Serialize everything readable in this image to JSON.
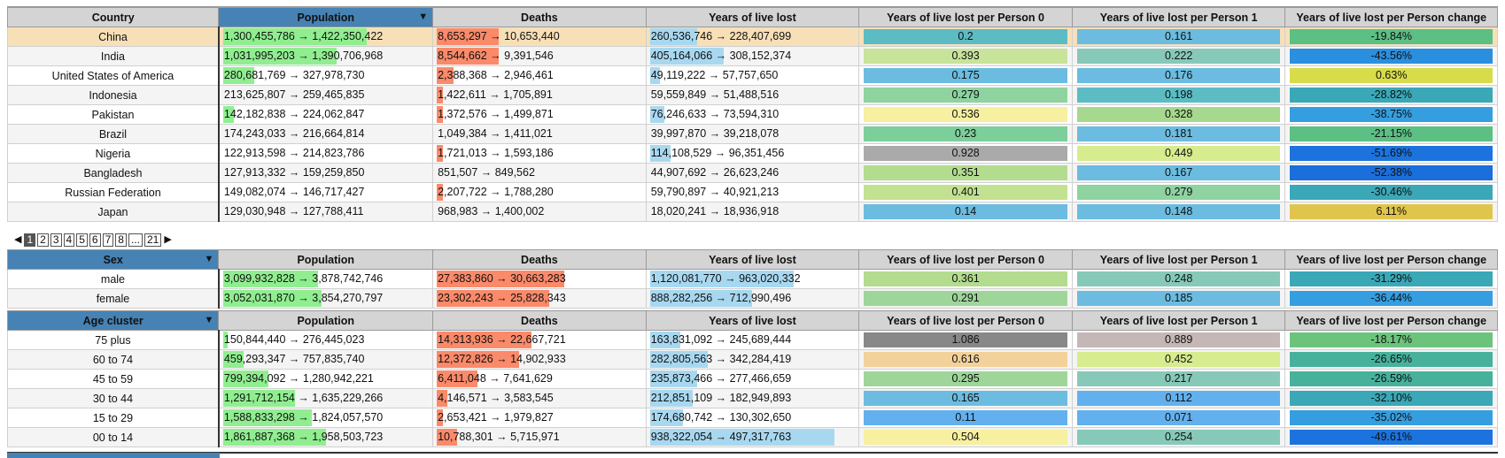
{
  "country_table": {
    "headers": [
      "Country",
      "Population",
      "Deaths",
      "Years of live lost",
      "Years of live lost per Person 0",
      "Years of live lost per Person 1",
      "Years of live lost per Person change"
    ],
    "rows": [
      {
        "name": "China",
        "pop": "1,300,455,786 → 1,422,350,422",
        "pop_frac": 0.7,
        "deaths": "8,653,297 → 10,653,440",
        "deaths_frac": 0.3,
        "yll": "260,536,746 → 228,407,699",
        "yll_frac": 0.23,
        "p0": "0.2",
        "p0_color": "#5bbcc4",
        "p1": "0.161",
        "p1_color": "#6bbce0",
        "chg": "-19.84%",
        "chg_color": "#5cbf84",
        "highlight": true
      },
      {
        "name": "India",
        "pop": "1,031,995,203 → 1,390,706,968",
        "pop_frac": 0.55,
        "deaths": "8,544,662 → 9,391,546",
        "deaths_frac": 0.3,
        "yll": "405,164,066 → 308,152,374",
        "yll_frac": 0.36,
        "p0": "0.393",
        "p0_color": "#c8e39a",
        "p1": "0.222",
        "p1_color": "#87c9b9",
        "chg": "-43.56%",
        "chg_color": "#2b8fdf"
      },
      {
        "name": "United States of America",
        "pop": "280,681,769 → 327,978,730",
        "pop_frac": 0.15,
        "deaths": "2,388,368 → 2,946,461",
        "deaths_frac": 0.08,
        "yll": "49,119,222 → 57,757,650",
        "yll_frac": 0.05,
        "p0": "0.175",
        "p0_color": "#6bbce0",
        "p1": "0.176",
        "p1_color": "#6bbce0",
        "chg": "0.63%",
        "chg_color": "#d7dc4a"
      },
      {
        "name": "Indonesia",
        "pop": "213,625,807 → 259,465,835",
        "pop_frac": 0.0,
        "deaths": "1,422,611 → 1,705,891",
        "deaths_frac": 0.03,
        "yll": "59,559,849 → 51,488,516",
        "yll_frac": 0.0,
        "p0": "0.279",
        "p0_color": "#8ed3a0",
        "p1": "0.198",
        "p1_color": "#5bbcc4",
        "chg": "-28.82%",
        "chg_color": "#3aa8b7"
      },
      {
        "name": "Pakistan",
        "pop": "142,182,838 → 224,062,847",
        "pop_frac": 0.05,
        "deaths": "1,372,576 → 1,499,871",
        "deaths_frac": 0.03,
        "yll": "76,246,633 → 73,594,310",
        "yll_frac": 0.07,
        "p0": "0.536",
        "p0_color": "#f7f0a0",
        "p1": "0.328",
        "p1_color": "#a6d88e",
        "chg": "-38.75%",
        "chg_color": "#359ee0"
      },
      {
        "name": "Brazil",
        "pop": "174,243,033 → 216,664,814",
        "pop_frac": 0.0,
        "deaths": "1,049,384 → 1,411,021",
        "deaths_frac": 0.0,
        "yll": "39,997,870 → 39,218,078",
        "yll_frac": 0.0,
        "p0": "0.23",
        "p0_color": "#7ccf9a",
        "p1": "0.181",
        "p1_color": "#6bbce0",
        "chg": "-21.15%",
        "chg_color": "#5cbf84"
      },
      {
        "name": "Nigeria",
        "pop": "122,913,598 → 214,823,786",
        "pop_frac": 0.0,
        "deaths": "1,721,013 → 1,593,186",
        "deaths_frac": 0.03,
        "yll": "114,108,529 → 96,351,456",
        "yll_frac": 0.1,
        "p0": "0.928",
        "p0_color": "#aaaaaa",
        "p1": "0.449",
        "p1_color": "#d7ec8e",
        "chg": "-51.69%",
        "chg_color": "#1d73dd"
      },
      {
        "name": "Bangladesh",
        "pop": "127,913,332 → 159,259,850",
        "pop_frac": 0.0,
        "deaths": "851,507 → 849,562",
        "deaths_frac": 0.0,
        "yll": "44,907,692 → 26,623,246",
        "yll_frac": 0.0,
        "p0": "0.351",
        "p0_color": "#b3dc8f",
        "p1": "0.167",
        "p1_color": "#6bbce0",
        "chg": "-52.38%",
        "chg_color": "#1a6fdc"
      },
      {
        "name": "Russian Federation",
        "pop": "149,082,074 → 146,717,427",
        "pop_frac": 0.0,
        "deaths": "2,207,722 → 1,788,280",
        "deaths_frac": 0.03,
        "yll": "59,790,897 → 40,921,213",
        "yll_frac": 0.0,
        "p0": "0.401",
        "p0_color": "#c2e291",
        "p1": "0.279",
        "p1_color": "#8ed3a0",
        "chg": "-30.46%",
        "chg_color": "#3aa8b7"
      },
      {
        "name": "Japan",
        "pop": "129,030,948 → 127,788,411",
        "pop_frac": 0.0,
        "deaths": "968,983 → 1,400,002",
        "deaths_frac": 0.0,
        "yll": "18,020,241 → 18,936,918",
        "yll_frac": 0.0,
        "p0": "0.14",
        "p0_color": "#6bbce0",
        "p1": "0.148",
        "p1_color": "#6bbce0",
        "chg": "6.11%",
        "chg_color": "#e0c54c"
      }
    ]
  },
  "pager": {
    "pages": [
      "1",
      "2",
      "3",
      "4",
      "5",
      "6",
      "7",
      "8",
      "...",
      "21"
    ],
    "current": "1"
  },
  "sex_table": {
    "headers": [
      "Sex",
      "Population",
      "Deaths",
      "Years of live lost",
      "Years of live lost per Person 0",
      "Years of live lost per Person 1",
      "Years of live lost per Person change"
    ],
    "rows": [
      {
        "name": "male",
        "pop": "3,099,932,828 → 3,878,742,746",
        "pop_frac": 0.46,
        "deaths": "27,383,860 → 30,663,283",
        "deaths_frac": 0.62,
        "yll": "1,120,081,770 → 963,020,332",
        "yll_frac": 0.7,
        "p0": "0.361",
        "p0_color": "#b3dc8f",
        "p1": "0.248",
        "p1_color": "#87c9b9",
        "chg": "-31.29%",
        "chg_color": "#3aa8b7"
      },
      {
        "name": "female",
        "pop": "3,052,031,870 → 3,854,270,797",
        "pop_frac": 0.48,
        "deaths": "23,302,243 → 25,828,343",
        "deaths_frac": 0.55,
        "yll": "888,282,256 → 712,990,496",
        "yll_frac": 0.5,
        "p0": "0.291",
        "p0_color": "#9ed69a",
        "p1": "0.185",
        "p1_color": "#6bbce0",
        "chg": "-36.44%",
        "chg_color": "#359ee0"
      }
    ]
  },
  "age_table": {
    "headers": [
      "Age cluster",
      "Population",
      "Deaths",
      "Years of live lost",
      "Years of live lost per Person 0",
      "Years of live lost per Person 1",
      "Years of live lost per Person change"
    ],
    "rows": [
      {
        "name": "75 plus",
        "pop": "150,844,440 → 276,445,023",
        "pop_frac": 0.02,
        "deaths": "14,313,936 → 22,667,721",
        "deaths_frac": 0.46,
        "yll": "163,831,092 → 245,689,444",
        "yll_frac": 0.15,
        "p0": "1.086",
        "p0_color": "#888888",
        "p1": "0.889",
        "p1_color": "#c6b7b7",
        "chg": "-18.17%",
        "chg_color": "#6cc47c"
      },
      {
        "name": "60 to 74",
        "pop": "459,293,347 → 757,835,740",
        "pop_frac": 0.1,
        "deaths": "12,372,826 → 14,902,933",
        "deaths_frac": 0.4,
        "yll": "282,805,563 → 342,284,419",
        "yll_frac": 0.28,
        "p0": "0.616",
        "p0_color": "#f3d19a",
        "p1": "0.452",
        "p1_color": "#d7ec8e",
        "chg": "-26.65%",
        "chg_color": "#47b19c"
      },
      {
        "name": "45 to 59",
        "pop": "799,394,092 → 1,280,942,221",
        "pop_frac": 0.22,
        "deaths": "6,411,048 → 7,641,629",
        "deaths_frac": 0.2,
        "yll": "235,873,466 → 277,466,659",
        "yll_frac": 0.23,
        "p0": "0.295",
        "p0_color": "#9ed69a",
        "p1": "0.217",
        "p1_color": "#87c9b9",
        "chg": "-26.59%",
        "chg_color": "#47b19c"
      },
      {
        "name": "30 to 44",
        "pop": "1,291,712,154 → 1,635,229,266",
        "pop_frac": 0.35,
        "deaths": "4,146,571 → 3,583,545",
        "deaths_frac": 0.05,
        "yll": "212,851,109 → 182,949,893",
        "yll_frac": 0.21,
        "p0": "0.165",
        "p0_color": "#6bbce0",
        "p1": "0.112",
        "p1_color": "#63b0ee",
        "chg": "-32.10%",
        "chg_color": "#3aa8b7"
      },
      {
        "name": "15 to 29",
        "pop": "1,588,833,298 → 1,824,057,570",
        "pop_frac": 0.43,
        "deaths": "2,653,421 → 1,979,827",
        "deaths_frac": 0.03,
        "yll": "174,680,742 → 130,302,650",
        "yll_frac": 0.16,
        "p0": "0.11",
        "p0_color": "#63b0ee",
        "p1": "0.071",
        "p1_color": "#63b0ee",
        "chg": "-35.02%",
        "chg_color": "#359ee0"
      },
      {
        "name": "00 to 14",
        "pop": "1,861,887,368 → 1,958,503,723",
        "pop_frac": 0.5,
        "deaths": "10,788,301 → 5,715,971",
        "deaths_frac": 0.1,
        "yll": "938,322,054 → 497,317,763",
        "yll_frac": 0.9,
        "p0": "0.504",
        "p0_color": "#f7f0a0",
        "p1": "0.254",
        "p1_color": "#87c9b9",
        "chg": "-49.61%",
        "chg_color": "#1d73dd"
      }
    ]
  }
}
